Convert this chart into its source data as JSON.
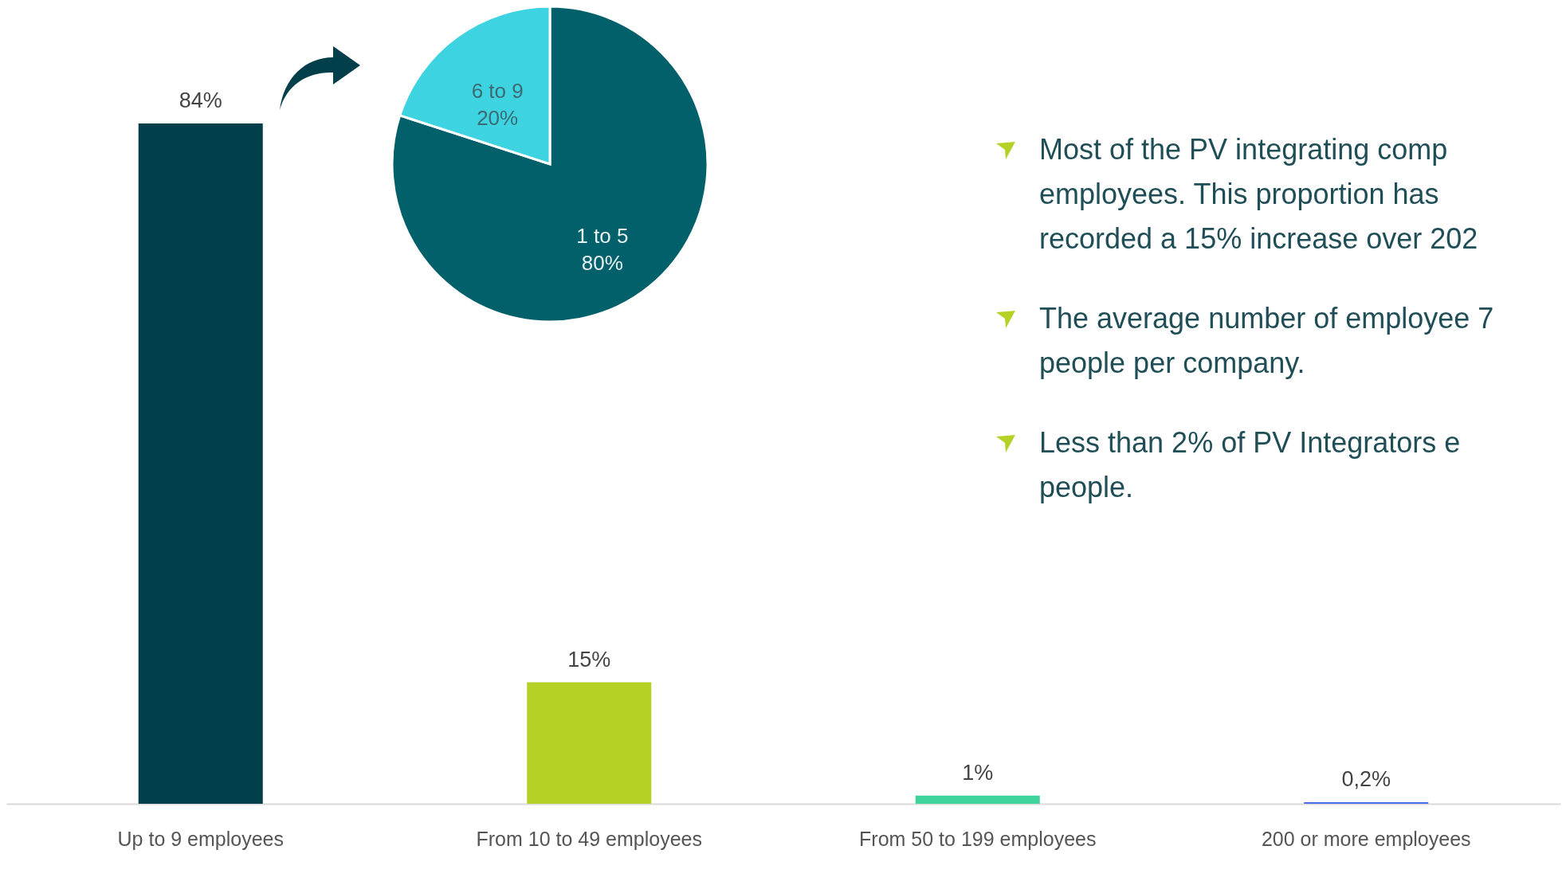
{
  "chart_data": [
    {
      "type": "bar",
      "categories": [
        "Up to 9 employees",
        "From 10 to 49 employees",
        "From 50 to 199 employees",
        "200 or more employees"
      ],
      "values": [
        84,
        15,
        1,
        0.2
      ],
      "colors": [
        "#023f4a",
        "#b5d125",
        "#3dd39b",
        "#4a6fe0"
      ],
      "value_labels": [
        "84%",
        "15%",
        "1%",
        "0,2%"
      ],
      "tick_labels": "x"
    },
    {
      "type": "pie",
      "categories": [
        "1 to 5",
        "6 to 9"
      ],
      "values": [
        80,
        20
      ],
      "colors": [
        "#02606a",
        "#3dd3e0"
      ],
      "value_labels": [
        "80%",
        "20%"
      ]
    },
    {
      "type": "other",
      "annotations": [
        "Most of the PV integrating comp employees. This proportion has recorded a 15% increase over 202",
        "The average number of employee 7 people per company.",
        "Less than 2% of PV Integrators e people."
      ]
    }
  ]
}
